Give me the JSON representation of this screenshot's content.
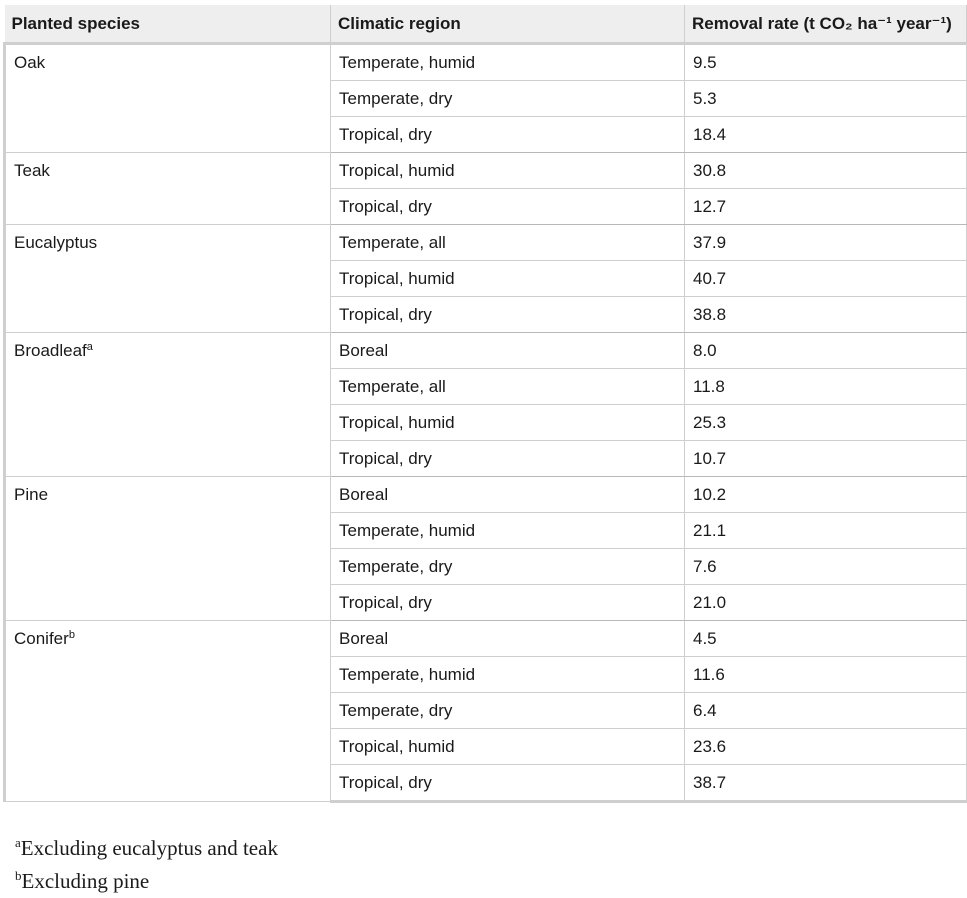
{
  "table": {
    "headers": {
      "species": "Planted species",
      "region": "Climatic region",
      "rate": "Removal rate (t CO₂ ha⁻¹ year⁻¹)"
    },
    "groups": [
      {
        "species": "Oak",
        "marker": "",
        "rows": [
          {
            "region": "Temperate, humid",
            "rate": "9.5"
          },
          {
            "region": "Temperate, dry",
            "rate": "5.3"
          },
          {
            "region": "Tropical, dry",
            "rate": "18.4"
          }
        ]
      },
      {
        "species": "Teak",
        "marker": "",
        "rows": [
          {
            "region": "Tropical, humid",
            "rate": "30.8"
          },
          {
            "region": "Tropical, dry",
            "rate": "12.7"
          }
        ]
      },
      {
        "species": "Eucalyptus",
        "marker": "",
        "rows": [
          {
            "region": "Temperate, all",
            "rate": "37.9"
          },
          {
            "region": "Tropical, humid",
            "rate": "40.7"
          },
          {
            "region": "Tropical, dry",
            "rate": "38.8"
          }
        ]
      },
      {
        "species": "Broadleaf",
        "marker": "a",
        "rows": [
          {
            "region": "Boreal",
            "rate": "8.0"
          },
          {
            "region": "Temperate, all",
            "rate": "11.8"
          },
          {
            "region": "Tropical, humid",
            "rate": "25.3"
          },
          {
            "region": "Tropical, dry",
            "rate": "10.7"
          }
        ]
      },
      {
        "species": "Pine",
        "marker": "",
        "rows": [
          {
            "region": "Boreal",
            "rate": "10.2"
          },
          {
            "region": "Temperate, humid",
            "rate": "21.1"
          },
          {
            "region": "Temperate, dry",
            "rate": "7.6"
          },
          {
            "region": "Tropical, dry",
            "rate": "21.0"
          }
        ]
      },
      {
        "species": "Conifer",
        "marker": "b",
        "rows": [
          {
            "region": "Boreal",
            "rate": "4.5"
          },
          {
            "region": "Temperate, humid",
            "rate": "11.6"
          },
          {
            "region": "Temperate, dry",
            "rate": "6.4"
          },
          {
            "region": "Tropical, humid",
            "rate": "23.6"
          },
          {
            "region": "Tropical, dry",
            "rate": "38.7"
          }
        ]
      }
    ]
  },
  "footnotes": [
    {
      "marker": "a",
      "text": "Excluding eucalyptus and teak"
    },
    {
      "marker": "b",
      "text": "Excluding pine"
    }
  ]
}
